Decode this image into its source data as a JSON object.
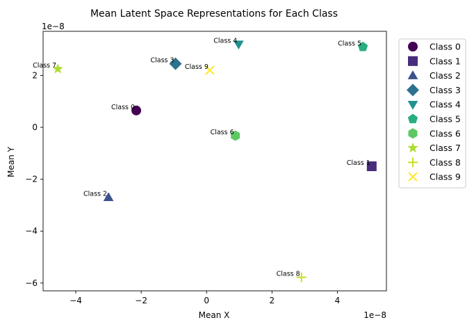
{
  "chart_data": {
    "type": "scatter",
    "title": "Mean Latent Space Representations for Each Class",
    "xlabel": "Mean X",
    "ylabel": "Mean Y",
    "x_offset_text": "1e−8",
    "y_offset_text": "1e−8",
    "xlim": [
      -5.0,
      5.5
    ],
    "ylim": [
      -6.3,
      3.7
    ],
    "xticks": [
      -4,
      -2,
      0,
      2,
      4
    ],
    "yticks": [
      -6,
      -4,
      -2,
      0,
      2
    ],
    "xtick_labels": [
      "−4",
      "−2",
      "0",
      "2",
      "4"
    ],
    "ytick_labels": [
      "−6",
      "−4",
      "−2",
      "0",
      "2"
    ],
    "grid": false,
    "legend_position": "outside-right-top",
    "series": [
      {
        "name": "Class 0",
        "x": -2.15,
        "y": 0.65,
        "marker": "circle",
        "color": "#440154"
      },
      {
        "name": "Class 1",
        "x": 5.05,
        "y": -1.5,
        "marker": "square",
        "color": "#472d7b"
      },
      {
        "name": "Class 2",
        "x": -3.0,
        "y": -2.7,
        "marker": "triangle-up",
        "color": "#3b528b"
      },
      {
        "name": "Class 3",
        "x": -0.95,
        "y": 2.45,
        "marker": "diamond",
        "color": "#2c728e"
      },
      {
        "name": "Class 4",
        "x": 0.98,
        "y": 3.2,
        "marker": "triangle-down",
        "color": "#21918c"
      },
      {
        "name": "Class 5",
        "x": 4.78,
        "y": 3.1,
        "marker": "pentagon",
        "color": "#28ae80"
      },
      {
        "name": "Class 6",
        "x": 0.88,
        "y": -0.32,
        "marker": "hexagon",
        "color": "#5ec962"
      },
      {
        "name": "Class 7",
        "x": -4.55,
        "y": 2.25,
        "marker": "star",
        "color": "#addc30"
      },
      {
        "name": "Class 8",
        "x": 2.9,
        "y": -5.78,
        "marker": "plus",
        "color": "#c8e020"
      },
      {
        "name": "Class 9",
        "x": 0.1,
        "y": 2.2,
        "marker": "x",
        "color": "#fde725"
      }
    ]
  }
}
